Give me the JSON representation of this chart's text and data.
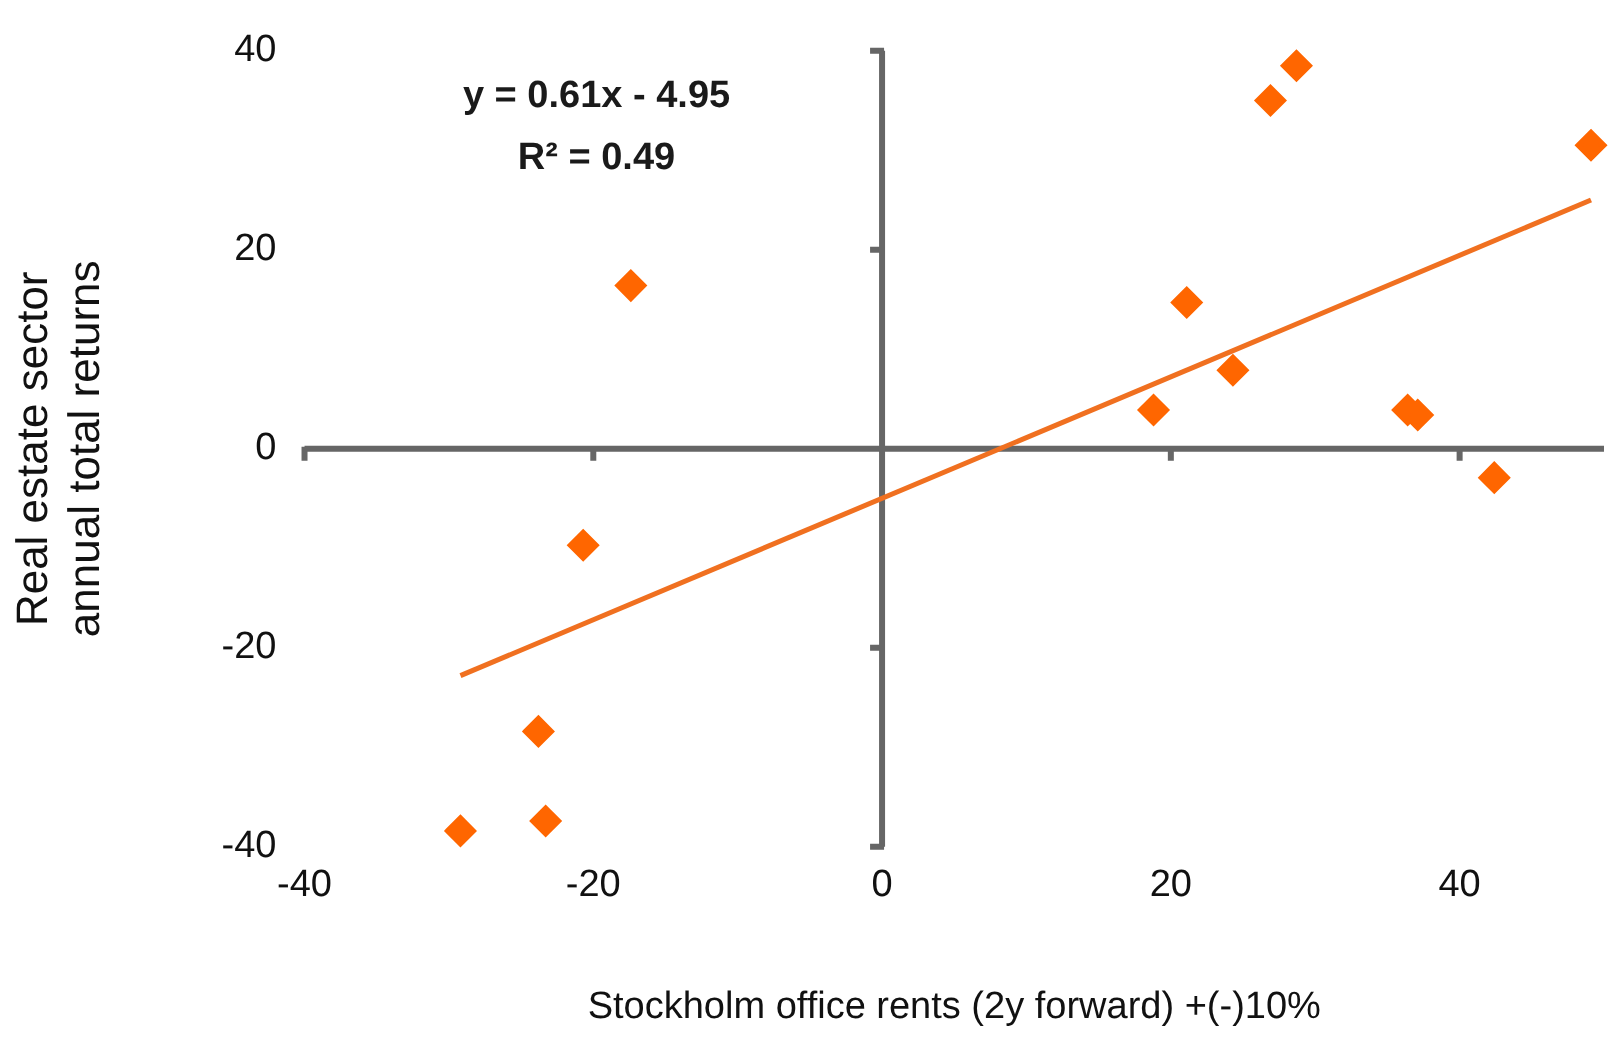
{
  "chart_data": {
    "type": "scatter",
    "xlabel": "Stockholm office rents (2y forward) +(-)10%",
    "ylabel": "Real estate sector annual total returns",
    "annotations": [
      "y = 0.61x - 4.95",
      "R² = 0.49"
    ],
    "xlim": [
      -40,
      50
    ],
    "xticks": [
      -40,
      -20,
      0,
      20,
      40
    ],
    "ylim": [
      -40,
      40
    ],
    "yticks": [
      -40,
      -20,
      0,
      20,
      40
    ],
    "legend": false,
    "marker": "diamond",
    "series": [
      {
        "type": "scatter",
        "color": "#ff6600",
        "x": [
          -29.2,
          -23.3,
          -23.8,
          -20.7,
          -17.4,
          18.8,
          21.1,
          24.3,
          26.9,
          28.7,
          36.4,
          37.1,
          42.4,
          49.1
        ],
        "values": [
          -38.4,
          -37.4,
          -28.4,
          -9.7,
          16.4,
          3.9,
          14.7,
          7.9,
          35.0,
          38.5,
          3.9,
          3.4,
          -2.9,
          30.5
        ]
      },
      {
        "type": "line",
        "color": "#f07020",
        "x": [
          -29.2,
          49.1
        ],
        "values": [
          -22.8,
          25.0
        ],
        "marker": "none",
        "line_style": "solid"
      }
    ]
  }
}
